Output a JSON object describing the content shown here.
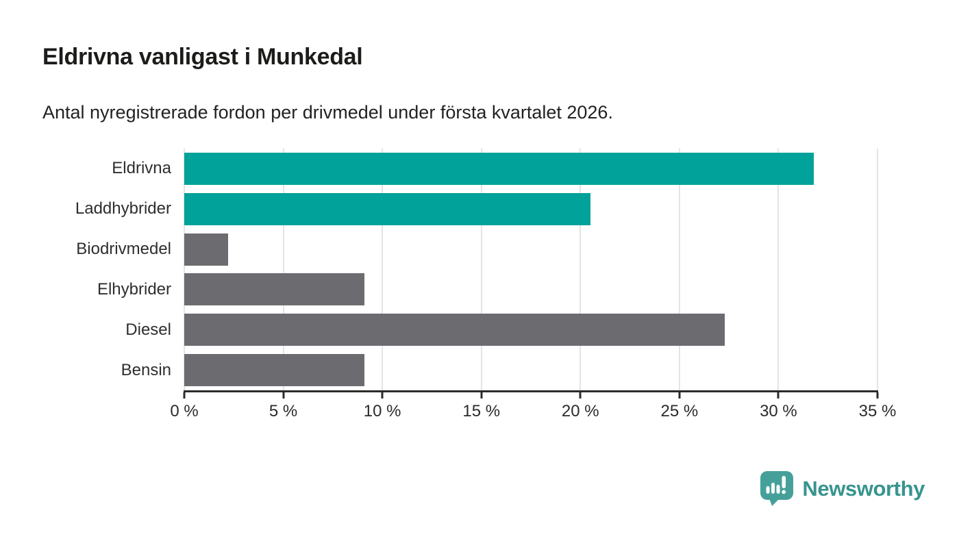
{
  "title": "Eldrivna vanligast i Munkedal",
  "subtitle": "Antal nyregistrerade fordon per drivmedel under första kvartalet 2026.",
  "chart_data": {
    "type": "bar",
    "orientation": "horizontal",
    "title": "Eldrivna vanligast i Munkedal",
    "subtitle": "Antal nyregistrerade fordon per drivmedel under första kvartalet 2026.",
    "categories": [
      "Eldrivna",
      "Laddhybrider",
      "Biodrivmedel",
      "Elhybrider",
      "Diesel",
      "Bensin"
    ],
    "values": [
      31.8,
      20.5,
      2.2,
      9.1,
      27.3,
      9.1
    ],
    "unit": "%",
    "xlabel": "",
    "ylabel": "",
    "xlim": [
      0,
      35
    ],
    "x_ticks": [
      0,
      5,
      10,
      15,
      20,
      25,
      30,
      35
    ],
    "x_tick_labels": [
      "0 %",
      "5 %",
      "10 %",
      "15 %",
      "20 %",
      "25 %",
      "30 %",
      "35 %"
    ],
    "bar_colors": [
      "#00A29A",
      "#00A29A",
      "#6B6B70",
      "#6B6B70",
      "#6B6B70",
      "#6B6B70"
    ],
    "grid": true,
    "legend": false
  },
  "colors": {
    "accent_teal": "#00A29A",
    "bar_gray": "#6B6B70",
    "gridline": "#E4E4E4",
    "axis": "#2B2B2B",
    "logo_icon": "#46A09A",
    "logo_text": "#37948E"
  },
  "logo": {
    "brand": "Newsworthy",
    "icon": "newsworthy-barchart-speech-bubble-icon"
  }
}
